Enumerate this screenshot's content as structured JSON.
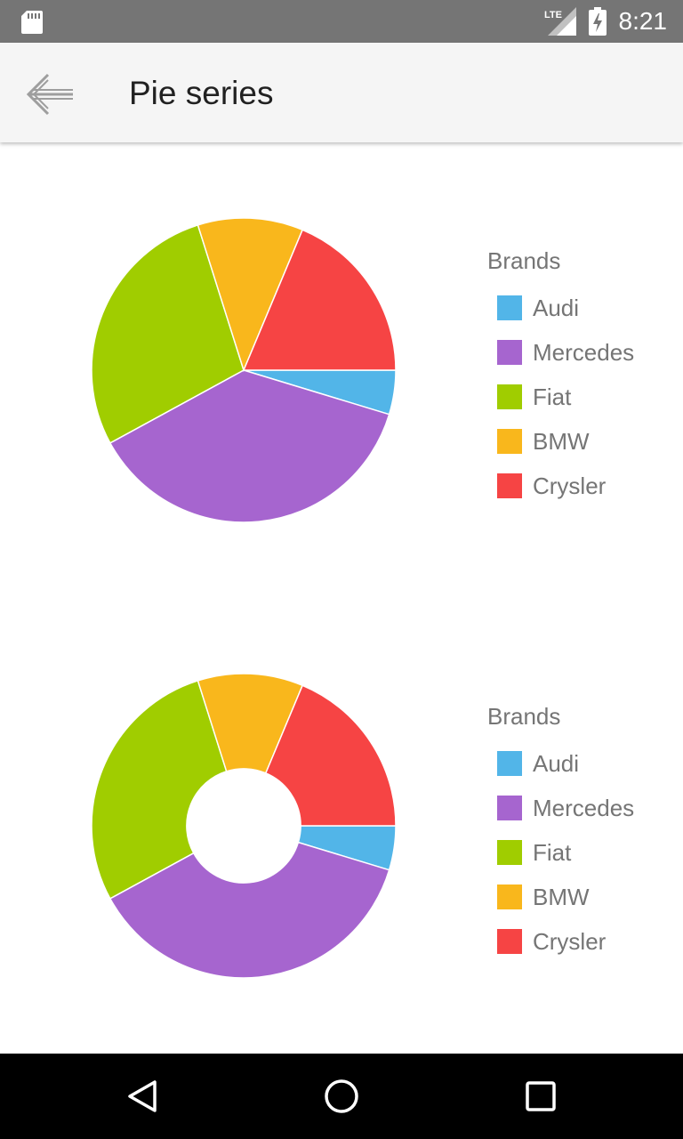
{
  "status_bar": {
    "time": "8:21",
    "network": "LTE"
  },
  "app_bar": {
    "title": "Pie series"
  },
  "charts_legend_title": "Brands",
  "chart_data": [
    {
      "type": "pie",
      "categories": [
        "Audi",
        "Mercedes",
        "Fiat",
        "BMW",
        "Crysler"
      ],
      "values": [
        4.7,
        37.4,
        28.1,
        11.2,
        18.7
      ],
      "colors": [
        "#52b5e8",
        "#a665cf",
        "#a0cd00",
        "#f9b71c",
        "#f64444"
      ],
      "legend_title": "Brands",
      "legend_position": "right",
      "inner_radius_fraction": 0
    },
    {
      "type": "pie",
      "categories": [
        "Audi",
        "Mercedes",
        "Fiat",
        "BMW",
        "Crysler"
      ],
      "values": [
        4.7,
        37.4,
        28.1,
        11.2,
        18.7
      ],
      "colors": [
        "#52b5e8",
        "#a665cf",
        "#a0cd00",
        "#f9b71c",
        "#f64444"
      ],
      "legend_title": "Brands",
      "legend_position": "right",
      "inner_radius_fraction": 0.375
    }
  ],
  "nav_bar": {
    "back": "back-icon",
    "home": "home-icon",
    "recents": "recents-icon"
  }
}
